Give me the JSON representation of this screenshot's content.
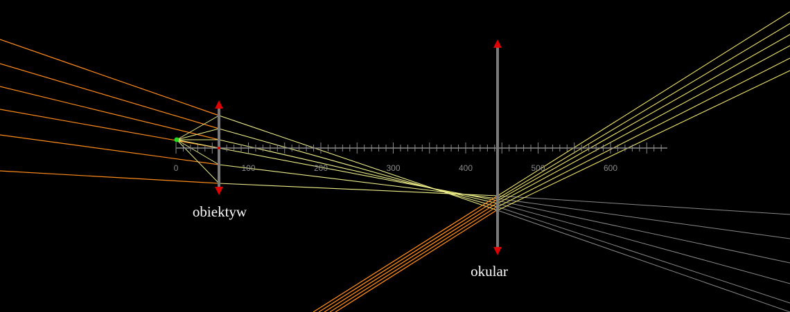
{
  "scale": {
    "ticks": [
      "0",
      "100",
      "200",
      "300",
      "400",
      "500",
      "600"
    ],
    "color": "#8a8a8a"
  },
  "lenses": {
    "objective": {
      "label": "obiektyw"
    },
    "eyepiece": {
      "label": "okular"
    }
  },
  "colors": {
    "background": "#000000",
    "lens_body": "#7a7a7a",
    "lens_arrow": "#e00000",
    "source_point": "#22dd22",
    "incident_ray": "#ff8c1a",
    "refracted_ray": "#f0f08a",
    "virtual_ray": "#8a8a8a",
    "emergent_ray": "#f2e66a"
  },
  "icons": {
    "source": "green-point-source-icon",
    "lens_arrow": "red-arrowhead-icon"
  }
}
